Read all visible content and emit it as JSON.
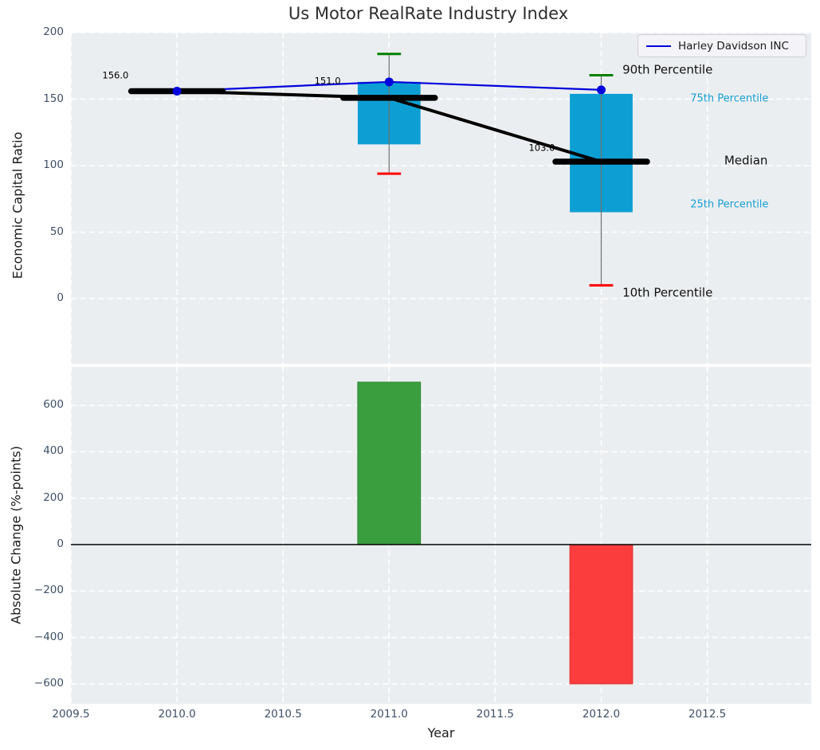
{
  "chart_data": {
    "type": "boxplot+line+bar",
    "title": "Us Motor RealRate Industry Index",
    "xlabel": "Year",
    "xlim": [
      2009.5,
      2012.99
    ],
    "x_tick_values": [
      2009.5,
      2010.0,
      2010.5,
      2011.0,
      2011.5,
      2012.0,
      2012.5
    ],
    "x_tick_labels": [
      "2009.5",
      "2010.0",
      "2010.5",
      "2011.0",
      "2011.5",
      "2012.0",
      "2012.5"
    ],
    "grid": "white-dashed",
    "legend": {
      "position": "top-right",
      "entries": [
        {
          "label": "Harley Davidson INC",
          "color": "#0202dd"
        }
      ]
    },
    "top_panel": {
      "ylabel": "Economic Capital Ratio",
      "ylim": [
        -49,
        200
      ],
      "y_tick_values": [
        0,
        50,
        100,
        150,
        200
      ],
      "y_tick_labels": [
        "0",
        "50",
        "100",
        "150",
        "200"
      ],
      "industry_boxes": [
        {
          "year": 2010,
          "median": 156,
          "median_label": "156.0",
          "label_x": 2009.71,
          "label_y": 167.5
        },
        {
          "year": 2011,
          "median": 151,
          "median_label": "151.0",
          "label_x": 2010.71,
          "label_y": 163.5,
          "p10": 94,
          "p25": 116,
          "p75": 163,
          "p90": 184
        },
        {
          "year": 2012,
          "median": 103,
          "median_label": "103.0",
          "label_x": 2011.72,
          "label_y": 113,
          "p10": 10,
          "p25": 65,
          "p75": 154,
          "p90": 168
        }
      ],
      "company_series": {
        "name": "Harley Davidson INC",
        "years": [
          2010,
          2011,
          2012
        ],
        "values": [
          156,
          163,
          157
        ]
      },
      "annotations": [
        {
          "text": "90th Percentile",
          "x": 2012.1,
          "y": 172.0,
          "role": "default"
        },
        {
          "text": "75th Percentile",
          "x": 2012.42,
          "y": 149.5,
          "role": "accent"
        },
        {
          "text": "Median",
          "x": 2012.58,
          "y": 103.5,
          "role": "default"
        },
        {
          "text": "25th Percentile",
          "x": 2012.42,
          "y": 70.0,
          "role": "accent"
        },
        {
          "text": "10th Percentile",
          "x": 2012.1,
          "y": 4.5,
          "role": "default"
        }
      ]
    },
    "bottom_panel": {
      "ylabel": "Absolute Change (%-points)",
      "ylim": [
        -686,
        765
      ],
      "y_tick_values": [
        600,
        400,
        200,
        0,
        -200,
        -400,
        -600
      ],
      "y_tick_labels": [
        "600",
        "400",
        "200",
        "0",
        "−200",
        "−400",
        "−600"
      ],
      "bars": [
        {
          "year": 2011,
          "value": 700,
          "sign": "positive"
        },
        {
          "year": 2012,
          "value": -600,
          "sign": "negative"
        }
      ]
    },
    "colors": {
      "panel_background": "#ebeef0",
      "grid": "#ffffff",
      "box_fill": "#0d9fd4",
      "accent_text": "#189fd4",
      "company_line": "#0202dd",
      "median_line": "#000000",
      "whisker": "#6f6f6f",
      "p90_cap": "#008000",
      "p10_cap": "#fb0000",
      "bar_positive": "#3a9e3f",
      "bar_positive_edge": "#2f8735",
      "bar_negative": "#fc3d3d",
      "bar_negative_edge": "#e03030",
      "zero_line": "#000000",
      "tick_label": "#3f5069"
    }
  }
}
